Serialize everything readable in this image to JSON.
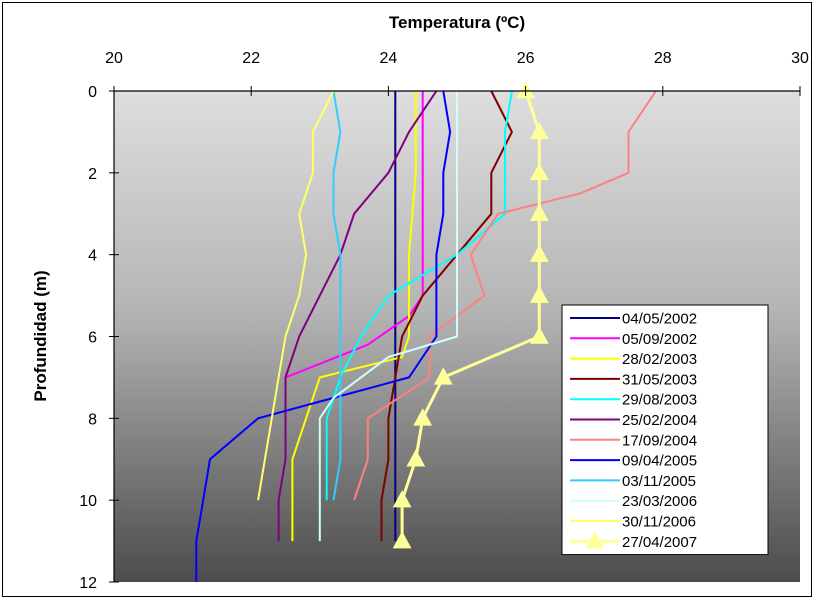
{
  "chart_data": {
    "type": "line",
    "title": "",
    "xlabel": "Temperatura (ºC)",
    "ylabel": "Profundidad (m)",
    "xlim": [
      20,
      30
    ],
    "ylim": [
      0,
      12
    ],
    "y_inverted": true,
    "x_axis_position": "top",
    "x_ticks": [
      20,
      22,
      24,
      26,
      28,
      30
    ],
    "y_ticks": [
      0,
      2,
      4,
      6,
      8,
      10,
      12
    ],
    "grid": false,
    "legend_position": "bottom-right",
    "background": "gradient gray",
    "series": [
      {
        "name": "04/05/2002",
        "color": "#000080",
        "marker": "none",
        "points": [
          [
            24.1,
            0
          ],
          [
            24.1,
            1
          ],
          [
            24.1,
            2
          ],
          [
            24.1,
            3
          ],
          [
            24.1,
            4
          ],
          [
            24.1,
            5
          ],
          [
            24.1,
            6
          ],
          [
            24.1,
            7
          ],
          [
            24.1,
            8
          ],
          [
            24.1,
            9
          ],
          [
            24.1,
            10
          ],
          [
            24.1,
            11
          ]
        ]
      },
      {
        "name": "05/09/2002",
        "color": "#ff00ff",
        "marker": "none",
        "points": [
          [
            24.5,
            0
          ],
          [
            24.5,
            1
          ],
          [
            24.5,
            2
          ],
          [
            24.5,
            3
          ],
          [
            24.5,
            4
          ],
          [
            24.5,
            5
          ],
          [
            24.3,
            5.5
          ],
          [
            23.7,
            6.2
          ],
          [
            22.5,
            7
          ]
        ]
      },
      {
        "name": "28/02/2003",
        "color": "#ffff00",
        "marker": "none",
        "points": [
          [
            24.4,
            0
          ],
          [
            24.4,
            1
          ],
          [
            24.4,
            2
          ],
          [
            24.35,
            3
          ],
          [
            24.3,
            4
          ],
          [
            24.3,
            5
          ],
          [
            24.3,
            6
          ],
          [
            24.2,
            6.5
          ],
          [
            23,
            7
          ],
          [
            22.8,
            8
          ],
          [
            22.6,
            9
          ],
          [
            22.6,
            10
          ],
          [
            22.6,
            11
          ]
        ]
      },
      {
        "name": "31/05/2003",
        "color": "#800000",
        "marker": "none",
        "points": [
          [
            25.5,
            0
          ],
          [
            25.8,
            1
          ],
          [
            25.5,
            2
          ],
          [
            25.5,
            3
          ],
          [
            25.0,
            4
          ],
          [
            24.5,
            5
          ],
          [
            24.2,
            6
          ],
          [
            24.1,
            7
          ],
          [
            24.0,
            8
          ],
          [
            24.0,
            9
          ],
          [
            23.9,
            10
          ],
          [
            23.9,
            11
          ]
        ]
      },
      {
        "name": "29/08/2003",
        "color": "#00ffff",
        "marker": "none",
        "points": [
          [
            25.8,
            0
          ],
          [
            25.7,
            1
          ],
          [
            25.7,
            2
          ],
          [
            25.7,
            3
          ],
          [
            25.0,
            4
          ],
          [
            24.0,
            5
          ],
          [
            23.6,
            6
          ],
          [
            23.3,
            7
          ],
          [
            23.1,
            8
          ],
          [
            23.1,
            9
          ],
          [
            23.1,
            10
          ]
        ]
      },
      {
        "name": "25/02/2004",
        "color": "#800080",
        "marker": "none",
        "points": [
          [
            24.7,
            0
          ],
          [
            24.3,
            1
          ],
          [
            24.0,
            2
          ],
          [
            23.5,
            3
          ],
          [
            23.3,
            4
          ],
          [
            23.0,
            5
          ],
          [
            22.7,
            6
          ],
          [
            22.5,
            7
          ],
          [
            22.5,
            8
          ],
          [
            22.5,
            9
          ],
          [
            22.4,
            10
          ],
          [
            22.4,
            11
          ]
        ]
      },
      {
        "name": "17/09/2004",
        "color": "#ff8080",
        "marker": "none",
        "points": [
          [
            27.9,
            0
          ],
          [
            27.5,
            1
          ],
          [
            27.5,
            2
          ],
          [
            26.8,
            2.5
          ],
          [
            25.6,
            3
          ],
          [
            25.2,
            4
          ],
          [
            25.4,
            5
          ],
          [
            25.0,
            5.5
          ],
          [
            24.6,
            6
          ],
          [
            24.6,
            7
          ],
          [
            23.7,
            8
          ],
          [
            23.7,
            9
          ],
          [
            23.5,
            10
          ]
        ]
      },
      {
        "name": "09/04/2005",
        "color": "#0000ff",
        "marker": "none",
        "points": [
          [
            24.8,
            0
          ],
          [
            24.9,
            1
          ],
          [
            24.8,
            2
          ],
          [
            24.8,
            3
          ],
          [
            24.7,
            4
          ],
          [
            24.7,
            5
          ],
          [
            24.7,
            6
          ],
          [
            24.3,
            7
          ],
          [
            23.2,
            7.5
          ],
          [
            22.1,
            8
          ],
          [
            21.4,
            9
          ],
          [
            21.3,
            10
          ],
          [
            21.2,
            11
          ],
          [
            21.2,
            12
          ]
        ]
      },
      {
        "name": "03/11/2005",
        "color": "#33ccff",
        "marker": "none",
        "points": [
          [
            23.2,
            0
          ],
          [
            23.3,
            1
          ],
          [
            23.2,
            2
          ],
          [
            23.2,
            3
          ],
          [
            23.3,
            4
          ],
          [
            23.3,
            5
          ],
          [
            23.3,
            6
          ],
          [
            23.3,
            7
          ],
          [
            23.3,
            8
          ],
          [
            23.3,
            9
          ],
          [
            23.2,
            10
          ]
        ]
      },
      {
        "name": "23/03/2006",
        "color": "#ccffff",
        "marker": "none",
        "points": [
          [
            25.0,
            0
          ],
          [
            25.0,
            1
          ],
          [
            25.0,
            2
          ],
          [
            25.0,
            3
          ],
          [
            25.0,
            4
          ],
          [
            25.0,
            5
          ],
          [
            25.0,
            6
          ],
          [
            24.0,
            6.5
          ],
          [
            23.2,
            7.5
          ],
          [
            23.0,
            8
          ],
          [
            23.0,
            9
          ],
          [
            23.0,
            10
          ],
          [
            23.0,
            11
          ]
        ]
      },
      {
        "name": "30/11/2006",
        "color": "#ffff66",
        "marker": "none",
        "points": [
          [
            23.2,
            0
          ],
          [
            22.9,
            1
          ],
          [
            22.9,
            2
          ],
          [
            22.7,
            3
          ],
          [
            22.8,
            4
          ],
          [
            22.7,
            5
          ],
          [
            22.5,
            6
          ],
          [
            22.4,
            7
          ],
          [
            22.3,
            8
          ],
          [
            22.2,
            9
          ],
          [
            22.1,
            10
          ]
        ]
      },
      {
        "name": "27/04/2007",
        "color": "#ffff99",
        "marker": "triangle",
        "points": [
          [
            26.0,
            0
          ],
          [
            26.2,
            1
          ],
          [
            26.2,
            2
          ],
          [
            26.2,
            3
          ],
          [
            26.2,
            4
          ],
          [
            26.2,
            5
          ],
          [
            26.2,
            6
          ],
          [
            24.8,
            7
          ],
          [
            24.5,
            8
          ],
          [
            24.4,
            9
          ],
          [
            24.2,
            10
          ],
          [
            24.2,
            11
          ]
        ]
      }
    ]
  }
}
